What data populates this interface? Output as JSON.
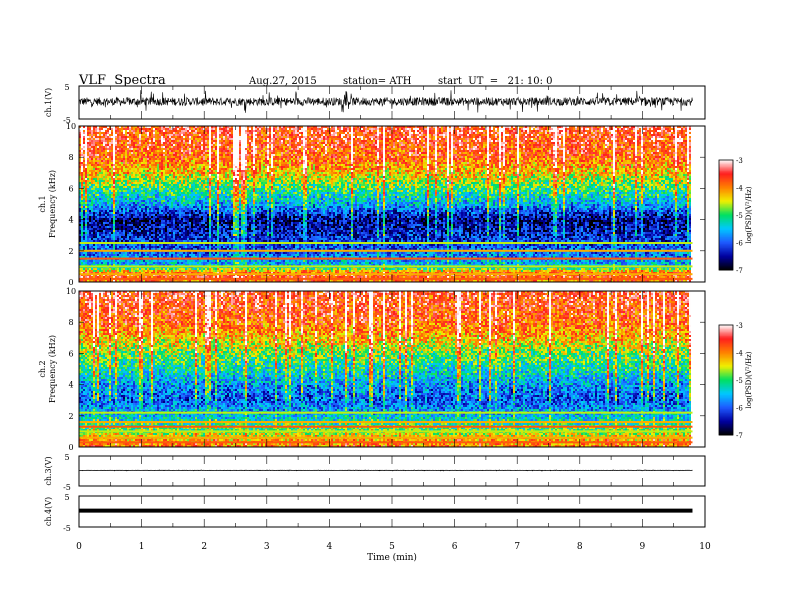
{
  "header": {
    "title": "VLF  Spectra",
    "date": "Aug.27, 2015",
    "station": "station= ATH",
    "start": "start  UT  =   21: 10: 0"
  },
  "chart_data": [
    {
      "type": "line",
      "panel": "ch1-waveform",
      "ylabel": "ch.1(V)",
      "ylim": [
        -5,
        5
      ],
      "yticks": [
        "5",
        "-5"
      ],
      "xlim": [
        0,
        10
      ],
      "x_end_min": 9.8,
      "mean_level_V": 0.3,
      "noise_amplitude_V": 2.5
    },
    {
      "type": "heatmap",
      "panel": "ch1-spectrogram",
      "ylabel": "ch.1\nFrequency  (kHz)",
      "ylim": [
        0,
        10
      ],
      "yticks": [
        "0",
        "2",
        "4",
        "6",
        "8",
        "10"
      ],
      "xlim": [
        0,
        10
      ],
      "x_end_min": 9.8,
      "colorbar": {
        "label": "log(PSD)(V²/Hz)",
        "range": [
          -7,
          -3
        ],
        "ticks": [
          "-3",
          "-4",
          "-5",
          "-6",
          "-7"
        ]
      },
      "psd_profile": [
        {
          "f": 0,
          "psd": -4.0
        },
        {
          "f": 0.5,
          "psd": -3.6
        },
        {
          "f": 1.0,
          "psd": -5.5
        },
        {
          "f": 2.0,
          "psd": -6.0
        },
        {
          "f": 3.0,
          "psd": -6.3
        },
        {
          "f": 4.0,
          "psd": -6.6
        },
        {
          "f": 5.0,
          "psd": -5.6
        },
        {
          "f": 6.0,
          "psd": -5.0
        },
        {
          "f": 7.0,
          "psd": -4.3
        },
        {
          "f": 8.0,
          "psd": -3.8
        },
        {
          "f": 10.0,
          "psd": -3.5
        }
      ],
      "line_bands_khz": [
        0.2,
        0.5,
        1.0,
        1.5,
        2.0,
        2.5
      ]
    },
    {
      "type": "heatmap",
      "panel": "ch2-spectrogram",
      "ylabel": "ch.2\nFrequency  (kHz)",
      "ylim": [
        0,
        10
      ],
      "yticks": [
        "0",
        "2",
        "4",
        "6",
        "8",
        "10"
      ],
      "xlim": [
        0,
        10
      ],
      "x_end_min": 9.8,
      "colorbar": {
        "label": "log(PSD)(V²/Hz)",
        "range": [
          -7,
          -3
        ],
        "ticks": [
          "-3",
          "-4",
          "-5",
          "-6",
          "-7"
        ]
      },
      "psd_profile": [
        {
          "f": 0,
          "psd": -4.0
        },
        {
          "f": 0.5,
          "psd": -4.2
        },
        {
          "f": 1.0,
          "psd": -4.8
        },
        {
          "f": 2.0,
          "psd": -5.5
        },
        {
          "f": 3.0,
          "psd": -6.0
        },
        {
          "f": 4.0,
          "psd": -5.7
        },
        {
          "f": 5.0,
          "psd": -5.2
        },
        {
          "f": 6.0,
          "psd": -4.8
        },
        {
          "f": 7.0,
          "psd": -4.2
        },
        {
          "f": 8.0,
          "psd": -3.8
        },
        {
          "f": 10.0,
          "psd": -3.5
        }
      ],
      "line_bands_khz": [
        0.3,
        0.6,
        1.0,
        1.3,
        1.6,
        2.2
      ]
    },
    {
      "type": "line",
      "panel": "ch3-waveform",
      "ylabel": "ch.3(V)",
      "ylim": [
        -5,
        5
      ],
      "yticks": [
        "5",
        "-5"
      ],
      "xlim": [
        0,
        10
      ],
      "x_end_min": 9.8,
      "mean_level_V": 0.2,
      "noise_amplitude_V": 0.1
    },
    {
      "type": "line",
      "panel": "ch4-waveform",
      "ylabel": "ch.4(V)",
      "ylim": [
        -5,
        5
      ],
      "yticks": [
        "5",
        "-5"
      ],
      "xlim": [
        0,
        10
      ],
      "x_end_min": 9.8,
      "mean_level_V": 0.3,
      "noise_amplitude_V": 0.0
    }
  ],
  "x_axis": {
    "xlabel": "Time  (min)",
    "ticks": [
      "0",
      "1",
      "2",
      "3",
      "4",
      "5",
      "6",
      "7",
      "8",
      "9",
      "10"
    ]
  },
  "colors": {
    "trace": "#000000",
    "heat_scale": [
      "#000000",
      "#0000a0",
      "#1e5aff",
      "#00c8ff",
      "#00e060",
      "#f0f000",
      "#ff8000",
      "#ff1e1e",
      "#ffffff"
    ]
  }
}
